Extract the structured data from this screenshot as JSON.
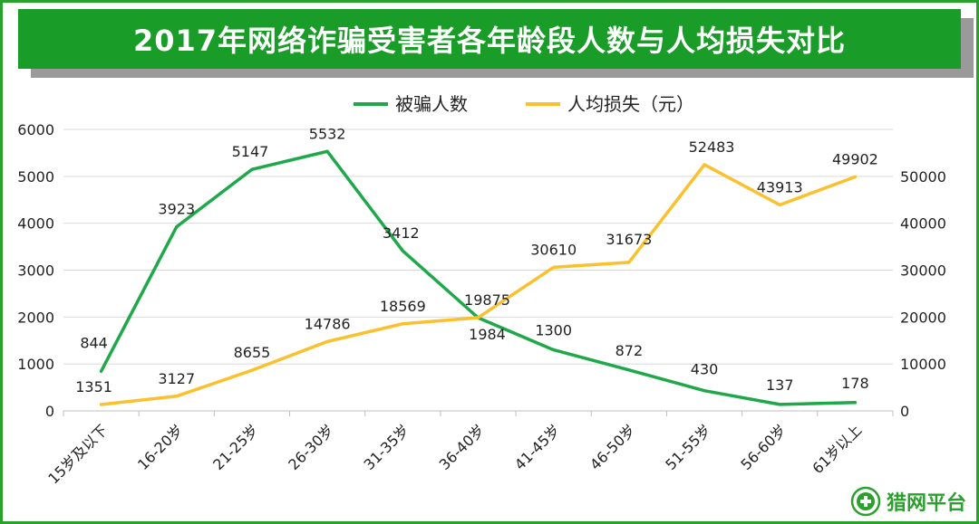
{
  "chart_data": {
    "type": "line",
    "title": "2017年网络诈骗受害者各年龄段人数与人均损失对比",
    "categories": [
      "15岁及以下",
      "16-20岁",
      "21-25岁",
      "26-30岁",
      "31-35岁",
      "36-40岁",
      "41-45岁",
      "46-50岁",
      "51-55岁",
      "56-60岁",
      "61岁以上"
    ],
    "series": [
      {
        "name": "被骗人数",
        "axis": "left",
        "color": "#1ea84a",
        "values": [
          844,
          3923,
          5147,
          5532,
          3412,
          1984,
          1300,
          872,
          430,
          137,
          178
        ]
      },
      {
        "name": "人均损失（元）",
        "axis": "right",
        "color": "#fbc02d",
        "values": [
          1351,
          3127,
          8655,
          14786,
          18569,
          19875,
          30610,
          31673,
          52483,
          43913,
          49902
        ]
      }
    ],
    "y_left": {
      "min": 0,
      "max": 6000,
      "ticks": [
        0,
        1000,
        2000,
        3000,
        4000,
        5000,
        6000
      ]
    },
    "y_right": {
      "min": 0,
      "max": 60000,
      "ticks": [
        0,
        10000,
        20000,
        30000,
        40000,
        50000
      ]
    },
    "grid": true,
    "legend": "top"
  },
  "brand": {
    "logo_text": "猎网平台",
    "logo_icon": "shield-plus-icon",
    "primary_color": "#2aa12c"
  }
}
